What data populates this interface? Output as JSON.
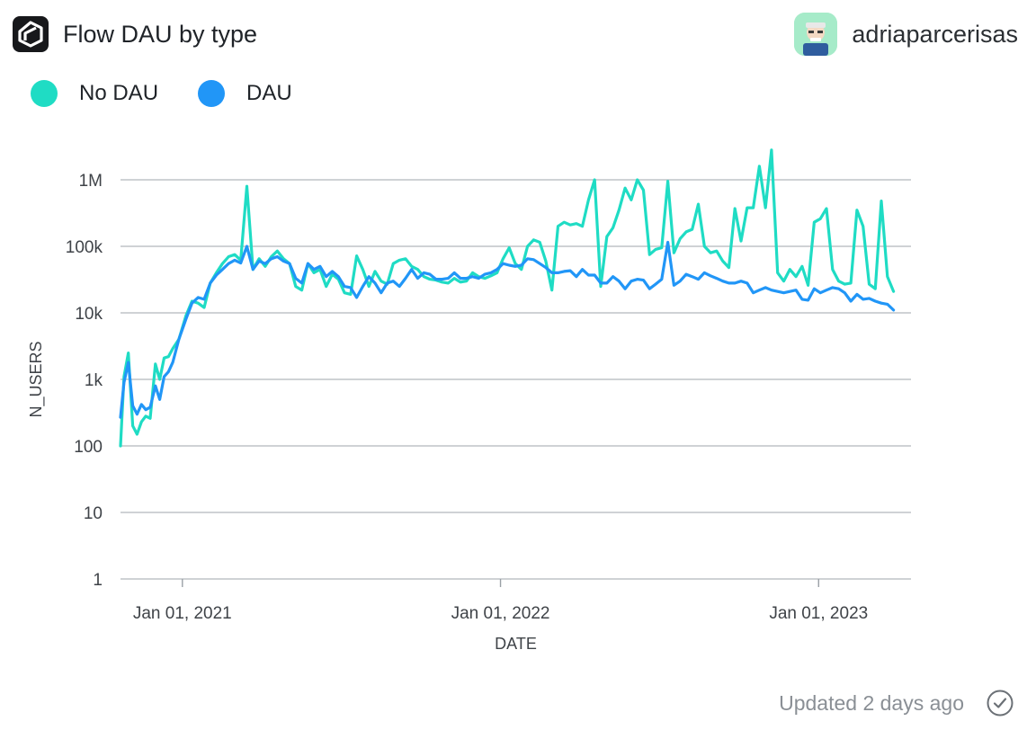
{
  "header": {
    "title": "Flow DAU by type",
    "username": "adriaparcerisas",
    "logo_icon": "flipside-logo-icon",
    "avatar_icon": "user-avatar-icon"
  },
  "footer": {
    "updated": "Updated 2 days ago",
    "status_icon": "check-circle-icon"
  },
  "chart_data": {
    "type": "line",
    "title": "Flow DAU by type",
    "xlabel": "DATE",
    "ylabel": "N_USERS",
    "yscale": "log",
    "ylim": [
      1,
      3000000
    ],
    "xlim": [
      "2020-10-22",
      "2023-04-17"
    ],
    "grid": true,
    "legend_position": "top-left",
    "yticks": [
      {
        "value": 1,
        "label": "1"
      },
      {
        "value": 10,
        "label": "10"
      },
      {
        "value": 100,
        "label": "100"
      },
      {
        "value": 1000,
        "label": "1k"
      },
      {
        "value": 10000,
        "label": "10k"
      },
      {
        "value": 100000,
        "label": "100k"
      },
      {
        "value": 1000000,
        "label": "1M"
      }
    ],
    "xticks": [
      {
        "value": "2021-01-01",
        "label": "Jan 01, 2021"
      },
      {
        "value": "2022-01-01",
        "label": "Jan 01, 2022"
      },
      {
        "value": "2023-01-01",
        "label": "Jan 01, 2023"
      }
    ],
    "series": [
      {
        "name": "No DAU",
        "color": "#1fdcc4",
        "points": [
          [
            "2020-10-22",
            100
          ],
          [
            "2020-10-26",
            1100
          ],
          [
            "2020-10-31",
            2500
          ],
          [
            "2020-11-05",
            200
          ],
          [
            "2020-11-10",
            150
          ],
          [
            "2020-11-15",
            230
          ],
          [
            "2020-11-20",
            280
          ],
          [
            "2020-11-25",
            260
          ],
          [
            "2020-12-01",
            1700
          ],
          [
            "2020-12-06",
            1000
          ],
          [
            "2020-12-11",
            2100
          ],
          [
            "2020-12-16",
            2200
          ],
          [
            "2020-12-21",
            2900
          ],
          [
            "2020-12-28",
            4000
          ],
          [
            "2021-01-05",
            9000
          ],
          [
            "2021-01-12",
            15000
          ],
          [
            "2021-01-19",
            14000
          ],
          [
            "2021-01-26",
            12000
          ],
          [
            "2021-02-02",
            28000
          ],
          [
            "2021-02-09",
            40000
          ],
          [
            "2021-02-16",
            55000
          ],
          [
            "2021-02-23",
            70000
          ],
          [
            "2021-03-02",
            75000
          ],
          [
            "2021-03-09",
            62000
          ],
          [
            "2021-03-16",
            800000
          ],
          [
            "2021-03-23",
            45000
          ],
          [
            "2021-03-30",
            65000
          ],
          [
            "2021-04-06",
            50000
          ],
          [
            "2021-04-13",
            70000
          ],
          [
            "2021-04-20",
            85000
          ],
          [
            "2021-04-27",
            65000
          ],
          [
            "2021-05-04",
            55000
          ],
          [
            "2021-05-11",
            25000
          ],
          [
            "2021-05-18",
            22000
          ],
          [
            "2021-05-25",
            55000
          ],
          [
            "2021-06-01",
            40000
          ],
          [
            "2021-06-08",
            45000
          ],
          [
            "2021-06-15",
            25000
          ],
          [
            "2021-06-22",
            38000
          ],
          [
            "2021-06-29",
            32000
          ],
          [
            "2021-07-06",
            20000
          ],
          [
            "2021-07-13",
            19000
          ],
          [
            "2021-07-20",
            72000
          ],
          [
            "2021-07-27",
            45000
          ],
          [
            "2021-08-03",
            25000
          ],
          [
            "2021-08-10",
            42000
          ],
          [
            "2021-08-17",
            30000
          ],
          [
            "2021-08-24",
            27000
          ],
          [
            "2021-08-31",
            55000
          ],
          [
            "2021-09-07",
            62000
          ],
          [
            "2021-09-14",
            65000
          ],
          [
            "2021-09-21",
            50000
          ],
          [
            "2021-09-28",
            45000
          ],
          [
            "2021-10-05",
            35000
          ],
          [
            "2021-10-12",
            32000
          ],
          [
            "2021-10-19",
            31000
          ],
          [
            "2021-10-26",
            29000
          ],
          [
            "2021-11-02",
            28000
          ],
          [
            "2021-11-09",
            33000
          ],
          [
            "2021-11-16",
            29000
          ],
          [
            "2021-11-23",
            30000
          ],
          [
            "2021-11-30",
            40000
          ],
          [
            "2021-12-07",
            35000
          ],
          [
            "2021-12-14",
            33000
          ],
          [
            "2021-12-21",
            36000
          ],
          [
            "2021-12-28",
            40000
          ],
          [
            "2022-01-04",
            65000
          ],
          [
            "2022-01-11",
            95000
          ],
          [
            "2022-01-18",
            55000
          ],
          [
            "2022-01-25",
            45000
          ],
          [
            "2022-02-01",
            100000
          ],
          [
            "2022-02-08",
            125000
          ],
          [
            "2022-02-15",
            115000
          ],
          [
            "2022-02-22",
            60000
          ],
          [
            "2022-03-01",
            22000
          ],
          [
            "2022-03-08",
            200000
          ],
          [
            "2022-03-15",
            230000
          ],
          [
            "2022-03-22",
            210000
          ],
          [
            "2022-03-29",
            220000
          ],
          [
            "2022-04-05",
            200000
          ],
          [
            "2022-04-12",
            500000
          ],
          [
            "2022-04-19",
            1000000
          ],
          [
            "2022-04-26",
            25000
          ],
          [
            "2022-05-03",
            140000
          ],
          [
            "2022-05-10",
            190000
          ],
          [
            "2022-05-17",
            350000
          ],
          [
            "2022-05-24",
            750000
          ],
          [
            "2022-05-31",
            500000
          ],
          [
            "2022-06-07",
            1000000
          ],
          [
            "2022-06-14",
            700000
          ],
          [
            "2022-06-21",
            75000
          ],
          [
            "2022-06-28",
            90000
          ],
          [
            "2022-07-05",
            95000
          ],
          [
            "2022-07-12",
            950000
          ],
          [
            "2022-07-19",
            80000
          ],
          [
            "2022-07-26",
            130000
          ],
          [
            "2022-08-02",
            165000
          ],
          [
            "2022-08-09",
            180000
          ],
          [
            "2022-08-16",
            430000
          ],
          [
            "2022-08-23",
            100000
          ],
          [
            "2022-08-30",
            80000
          ],
          [
            "2022-09-06",
            85000
          ],
          [
            "2022-09-13",
            60000
          ],
          [
            "2022-09-20",
            48000
          ],
          [
            "2022-09-27",
            370000
          ],
          [
            "2022-10-04",
            120000
          ],
          [
            "2022-10-11",
            380000
          ],
          [
            "2022-10-18",
            380000
          ],
          [
            "2022-10-25",
            1600000
          ],
          [
            "2022-11-01",
            380000
          ],
          [
            "2022-11-08",
            2800000
          ],
          [
            "2022-11-15",
            40000
          ],
          [
            "2022-11-22",
            30000
          ],
          [
            "2022-11-29",
            45000
          ],
          [
            "2022-12-06",
            35000
          ],
          [
            "2022-12-13",
            50000
          ],
          [
            "2022-12-20",
            26000
          ],
          [
            "2022-12-27",
            230000
          ],
          [
            "2023-01-03",
            260000
          ],
          [
            "2023-01-10",
            370000
          ],
          [
            "2023-01-17",
            45000
          ],
          [
            "2023-01-24",
            30000
          ],
          [
            "2023-01-31",
            27000
          ],
          [
            "2023-02-07",
            28000
          ],
          [
            "2023-02-14",
            350000
          ],
          [
            "2023-02-21",
            200000
          ],
          [
            "2023-02-28",
            27000
          ],
          [
            "2023-03-07",
            23000
          ],
          [
            "2023-03-14",
            480000
          ],
          [
            "2023-03-21",
            35000
          ],
          [
            "2023-03-28",
            21000
          ]
        ]
      },
      {
        "name": "DAU",
        "color": "#2196f7",
        "points": [
          [
            "2020-10-22",
            270
          ],
          [
            "2020-10-26",
            900
          ],
          [
            "2020-10-31",
            1800
          ],
          [
            "2020-11-05",
            400
          ],
          [
            "2020-11-10",
            300
          ],
          [
            "2020-11-15",
            420
          ],
          [
            "2020-11-20",
            350
          ],
          [
            "2020-11-25",
            380
          ],
          [
            "2020-12-01",
            800
          ],
          [
            "2020-12-06",
            500
          ],
          [
            "2020-12-11",
            1100
          ],
          [
            "2020-12-16",
            1300
          ],
          [
            "2020-12-21",
            1800
          ],
          [
            "2020-12-28",
            4000
          ],
          [
            "2021-01-05",
            8000
          ],
          [
            "2021-01-12",
            14000
          ],
          [
            "2021-01-19",
            17000
          ],
          [
            "2021-01-26",
            16000
          ],
          [
            "2021-02-02",
            28000
          ],
          [
            "2021-02-09",
            37000
          ],
          [
            "2021-02-16",
            45000
          ],
          [
            "2021-02-23",
            55000
          ],
          [
            "2021-03-02",
            62000
          ],
          [
            "2021-03-09",
            56000
          ],
          [
            "2021-03-16",
            100000
          ],
          [
            "2021-03-23",
            45000
          ],
          [
            "2021-03-30",
            60000
          ],
          [
            "2021-04-06",
            55000
          ],
          [
            "2021-04-13",
            65000
          ],
          [
            "2021-04-20",
            70000
          ],
          [
            "2021-04-27",
            60000
          ],
          [
            "2021-05-04",
            55000
          ],
          [
            "2021-05-11",
            33000
          ],
          [
            "2021-05-18",
            28000
          ],
          [
            "2021-05-25",
            55000
          ],
          [
            "2021-06-01",
            45000
          ],
          [
            "2021-06-08",
            50000
          ],
          [
            "2021-06-15",
            35000
          ],
          [
            "2021-06-22",
            42000
          ],
          [
            "2021-06-29",
            35000
          ],
          [
            "2021-07-06",
            25000
          ],
          [
            "2021-07-13",
            24000
          ],
          [
            "2021-07-20",
            17000
          ],
          [
            "2021-07-27",
            25000
          ],
          [
            "2021-08-03",
            35000
          ],
          [
            "2021-08-10",
            28000
          ],
          [
            "2021-08-17",
            20000
          ],
          [
            "2021-08-24",
            28000
          ],
          [
            "2021-08-31",
            30000
          ],
          [
            "2021-09-07",
            25000
          ],
          [
            "2021-09-14",
            33000
          ],
          [
            "2021-09-21",
            45000
          ],
          [
            "2021-09-28",
            33000
          ],
          [
            "2021-10-05",
            40000
          ],
          [
            "2021-10-12",
            38000
          ],
          [
            "2021-10-19",
            32000
          ],
          [
            "2021-10-26",
            32000
          ],
          [
            "2021-11-02",
            33000
          ],
          [
            "2021-11-09",
            40000
          ],
          [
            "2021-11-16",
            33000
          ],
          [
            "2021-11-23",
            33000
          ],
          [
            "2021-11-30",
            35000
          ],
          [
            "2021-12-07",
            33000
          ],
          [
            "2021-12-14",
            38000
          ],
          [
            "2021-12-21",
            40000
          ],
          [
            "2021-12-28",
            45000
          ],
          [
            "2022-01-04",
            55000
          ],
          [
            "2022-01-11",
            52000
          ],
          [
            "2022-01-18",
            50000
          ],
          [
            "2022-01-25",
            52000
          ],
          [
            "2022-02-01",
            65000
          ],
          [
            "2022-02-08",
            63000
          ],
          [
            "2022-02-15",
            55000
          ],
          [
            "2022-02-22",
            48000
          ],
          [
            "2022-03-01",
            40000
          ],
          [
            "2022-03-08",
            40000
          ],
          [
            "2022-03-15",
            42000
          ],
          [
            "2022-03-22",
            43000
          ],
          [
            "2022-03-29",
            35000
          ],
          [
            "2022-04-05",
            45000
          ],
          [
            "2022-04-12",
            37000
          ],
          [
            "2022-04-19",
            37000
          ],
          [
            "2022-04-26",
            28000
          ],
          [
            "2022-05-03",
            28000
          ],
          [
            "2022-05-10",
            35000
          ],
          [
            "2022-05-17",
            30000
          ],
          [
            "2022-05-24",
            23000
          ],
          [
            "2022-05-31",
            30000
          ],
          [
            "2022-06-07",
            32000
          ],
          [
            "2022-06-14",
            31000
          ],
          [
            "2022-06-21",
            23000
          ],
          [
            "2022-06-28",
            27000
          ],
          [
            "2022-07-05",
            32000
          ],
          [
            "2022-07-12",
            115000
          ],
          [
            "2022-07-19",
            26000
          ],
          [
            "2022-07-26",
            30000
          ],
          [
            "2022-08-02",
            38000
          ],
          [
            "2022-08-09",
            35000
          ],
          [
            "2022-08-16",
            32000
          ],
          [
            "2022-08-23",
            40000
          ],
          [
            "2022-08-30",
            36000
          ],
          [
            "2022-09-06",
            33000
          ],
          [
            "2022-09-13",
            30000
          ],
          [
            "2022-09-20",
            28000
          ],
          [
            "2022-09-27",
            28000
          ],
          [
            "2022-10-04",
            30000
          ],
          [
            "2022-10-11",
            28000
          ],
          [
            "2022-10-18",
            20000
          ],
          [
            "2022-10-25",
            22000
          ],
          [
            "2022-11-01",
            24000
          ],
          [
            "2022-11-08",
            22000
          ],
          [
            "2022-11-15",
            21000
          ],
          [
            "2022-11-22",
            20000
          ],
          [
            "2022-11-29",
            21000
          ],
          [
            "2022-12-06",
            22000
          ],
          [
            "2022-12-13",
            16000
          ],
          [
            "2022-12-20",
            15500
          ],
          [
            "2022-12-27",
            23000
          ],
          [
            "2023-01-03",
            20000
          ],
          [
            "2023-01-10",
            22000
          ],
          [
            "2023-01-17",
            24000
          ],
          [
            "2023-01-24",
            23000
          ],
          [
            "2023-01-31",
            20000
          ],
          [
            "2023-02-07",
            15000
          ],
          [
            "2023-02-14",
            19000
          ],
          [
            "2023-02-21",
            16000
          ],
          [
            "2023-02-28",
            16500
          ],
          [
            "2023-03-07",
            15000
          ],
          [
            "2023-03-14",
            14000
          ],
          [
            "2023-03-21",
            13500
          ],
          [
            "2023-03-28",
            11000
          ]
        ]
      }
    ]
  }
}
